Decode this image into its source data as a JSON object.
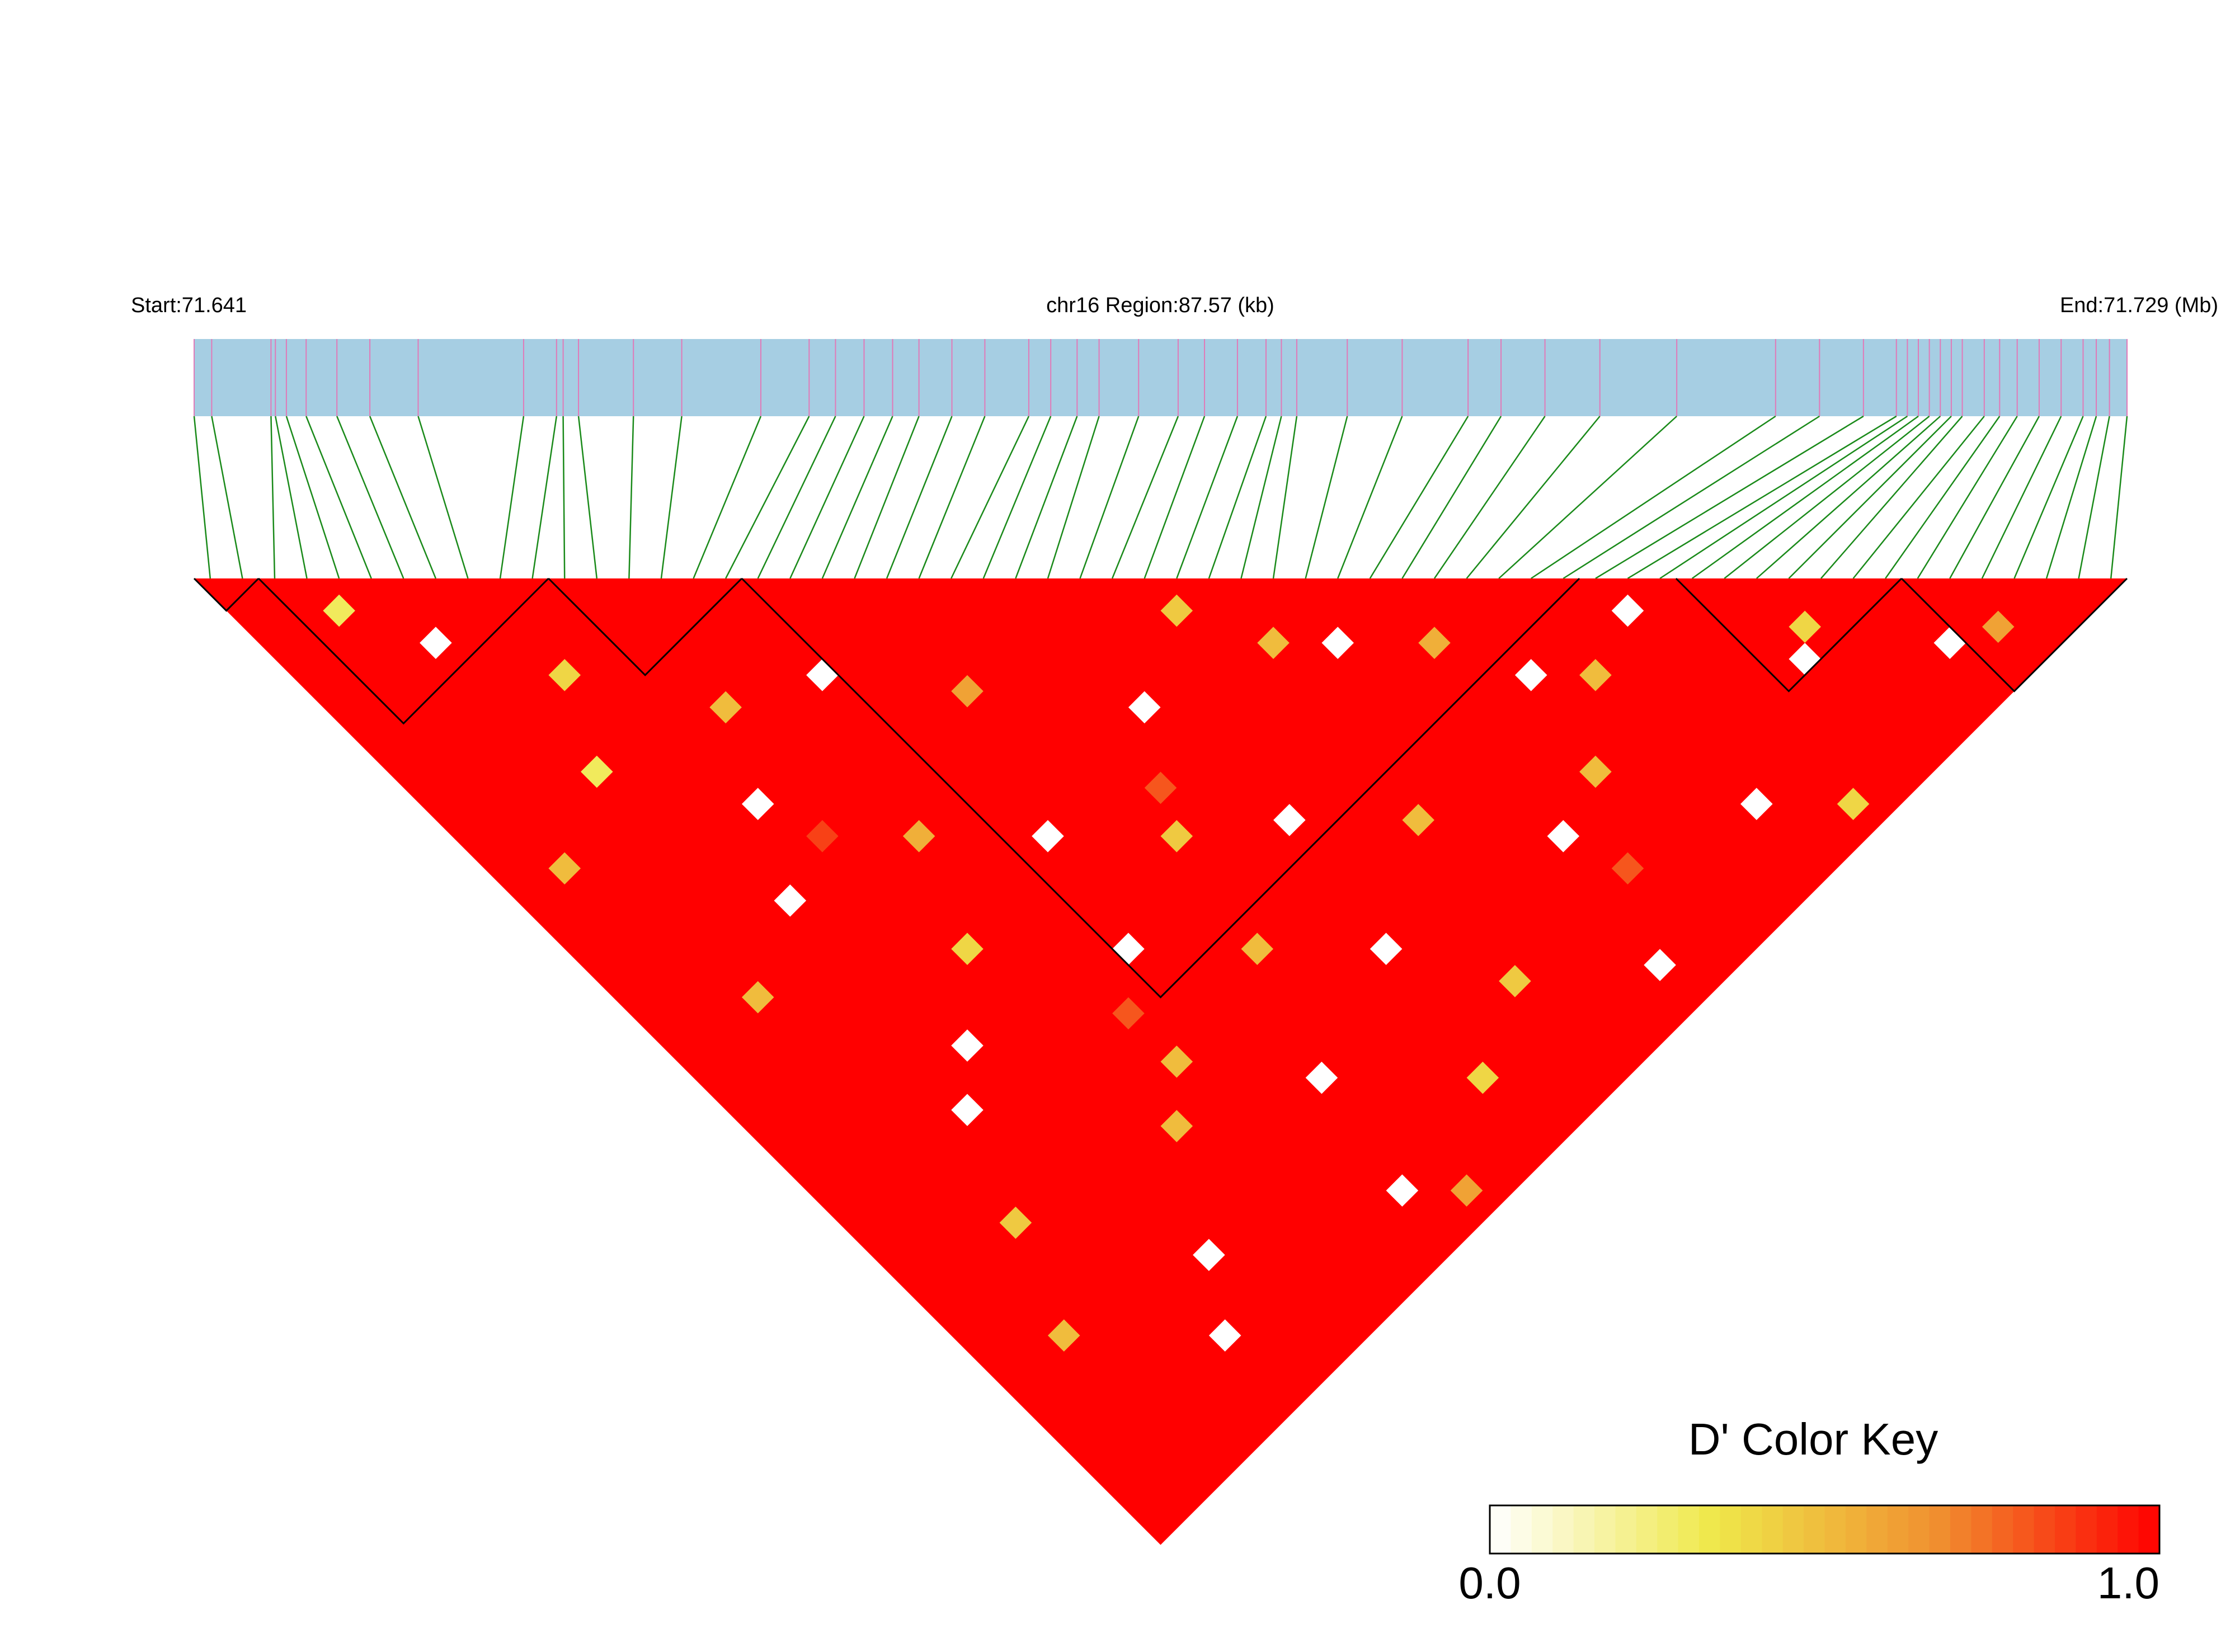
{
  "chart_data": {
    "type": "ld-heatmap",
    "start_label": "Start:71.641",
    "region_label": "chr16 Region:87.57 (kb)",
    "end_label": "End:71.729 (Mb)",
    "xlim": [
      71.641,
      71.729
    ],
    "bar_color": "#a6cee3",
    "tick_color": "#e07ab8",
    "link_color": "#1a8a1a",
    "block_color": "#000000",
    "snp_positions": [
      71.641,
      71.6418,
      71.6445,
      71.6447,
      71.6452,
      71.6461,
      71.6475,
      71.649,
      71.6512,
      71.656,
      71.6575,
      71.6578,
      71.6585,
      71.661,
      71.6632,
      71.6668,
      71.669,
      71.6702,
      71.6715,
      71.6728,
      71.674,
      71.6755,
      71.677,
      71.679,
      71.68,
      71.6812,
      71.6822,
      71.684,
      71.6858,
      71.687,
      71.6885,
      71.6898,
      71.6905,
      71.6912,
      71.6935,
      71.696,
      71.699,
      71.7005,
      71.7025,
      71.705,
      71.7085,
      71.713,
      71.715,
      71.717,
      71.7185,
      71.719,
      71.7195,
      71.72,
      71.7205,
      71.721,
      71.7215,
      71.7225,
      71.7232,
      71.724,
      71.725,
      71.726,
      71.727,
      71.7276,
      71.7282,
      71.729
    ],
    "default_d": 1,
    "cells": [
      [
        3,
        5,
        0.3
      ],
      [
        5,
        9,
        0.0
      ],
      [
        8,
        14,
        0.4
      ],
      [
        12,
        20,
        0.5
      ],
      [
        16,
        22,
        0.0
      ],
      [
        20,
        27,
        0.6
      ],
      [
        25,
        33,
        0.0
      ],
      [
        29,
        31,
        0.45
      ],
      [
        31,
        35,
        0.5
      ],
      [
        33,
        37,
        0.0
      ],
      [
        36,
        40,
        0.55
      ],
      [
        38,
        44,
        0.0
      ],
      [
        40,
        46,
        0.5
      ],
      [
        43,
        45,
        0.0
      ],
      [
        47,
        52,
        0.0
      ],
      [
        48,
        51,
        0.4
      ],
      [
        52,
        56,
        0.0
      ],
      [
        54,
        57,
        0.6
      ],
      [
        6,
        18,
        0.3
      ],
      [
        10,
        24,
        0.0
      ],
      [
        14,
        30,
        0.55
      ],
      [
        18,
        34,
        0.0
      ],
      [
        22,
        38,
        0.45
      ],
      [
        26,
        41,
        0.0
      ],
      [
        30,
        45,
        0.5
      ],
      [
        34,
        50,
        0.0
      ],
      [
        37,
        49,
        0.5
      ],
      [
        41,
        55,
        0.0
      ],
      [
        44,
        58,
        0.4
      ],
      [
        2,
        20,
        0.5
      ],
      [
        8,
        28,
        0.0
      ],
      [
        12,
        35,
        0.4
      ],
      [
        17,
        40,
        0.0
      ],
      [
        21,
        44,
        0.5
      ],
      [
        25,
        48,
        0.0
      ],
      [
        28,
        53,
        0.45
      ],
      [
        33,
        57,
        0.0
      ],
      [
        4,
        30,
        0.5
      ],
      [
        9,
        38,
        0.0
      ],
      [
        15,
        45,
        0.5
      ],
      [
        19,
        50,
        0.0
      ],
      [
        24,
        55,
        0.4
      ],
      [
        7,
        40,
        0.0
      ],
      [
        13,
        47,
        0.5
      ],
      [
        18,
        56,
        0.0
      ],
      [
        5,
        45,
        0.45
      ],
      [
        10,
        52,
        0.0
      ],
      [
        20,
        58,
        0.6
      ],
      [
        3,
        50,
        0.5
      ],
      [
        8,
        55,
        0.0
      ],
      [
        15,
        42,
        0.8
      ],
      [
        23,
        36,
        0.8
      ],
      [
        11,
        27,
        0.85
      ],
      [
        35,
        53,
        0.8
      ]
    ],
    "blocks": [
      [
        0,
        1
      ],
      [
        2,
        10
      ],
      [
        11,
        16
      ],
      [
        17,
        42
      ],
      [
        46,
        52
      ],
      [
        53,
        59
      ]
    ],
    "key_title": "D' Color Key",
    "key_colors": [
      "#ffffff",
      "#efe84a",
      "#f09030",
      "#ff0000"
    ],
    "key_ticks": [
      {
        "value": 0,
        "label": "0.0"
      },
      {
        "value": 1,
        "label": "1.0"
      }
    ]
  }
}
